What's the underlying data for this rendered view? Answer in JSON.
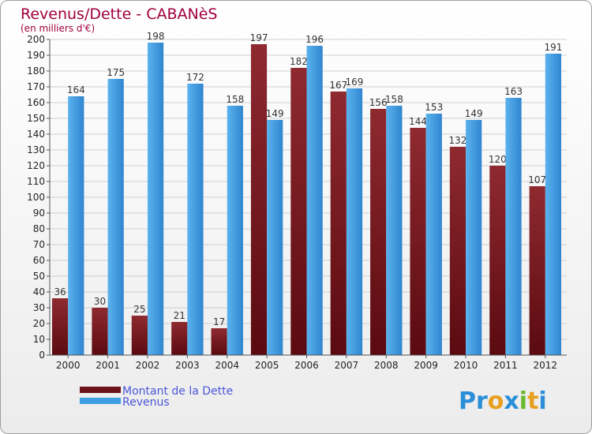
{
  "chart_data": {
    "type": "bar",
    "title": "Revenus/Dette - CABANèS",
    "subtitle": "(en milliers d'€)",
    "categories": [
      "2000",
      "2001",
      "2002",
      "2003",
      "2004",
      "2005",
      "2006",
      "2007",
      "2008",
      "2009",
      "2010",
      "2011",
      "2012"
    ],
    "series": [
      {
        "name": "Montant de la Dette",
        "color": "#7a1a20",
        "values": [
          36,
          30,
          25,
          21,
          17,
          197,
          182,
          167,
          156,
          144,
          132,
          120,
          107
        ]
      },
      {
        "name": "Revenus",
        "color": "#3d9ee6",
        "values": [
          164,
          175,
          198,
          172,
          158,
          149,
          196,
          169,
          158,
          153,
          149,
          163,
          191
        ]
      }
    ],
    "ylim": [
      0,
      200
    ],
    "ytick_step": 10,
    "grid": true,
    "legend_position": "bottom-left"
  },
  "brand": {
    "letters": [
      {
        "char": "P",
        "color": "#2a8fd8"
      },
      {
        "char": "r",
        "color": "#2a8fd8"
      },
      {
        "char": "o",
        "color": "#e8a020"
      },
      {
        "char": "x",
        "color": "#2a8fd8"
      },
      {
        "char": "i",
        "color": "#6ab82e"
      },
      {
        "char": "t",
        "color": "#e8a020"
      },
      {
        "char": "i",
        "color": "#2a8fd8"
      }
    ]
  }
}
